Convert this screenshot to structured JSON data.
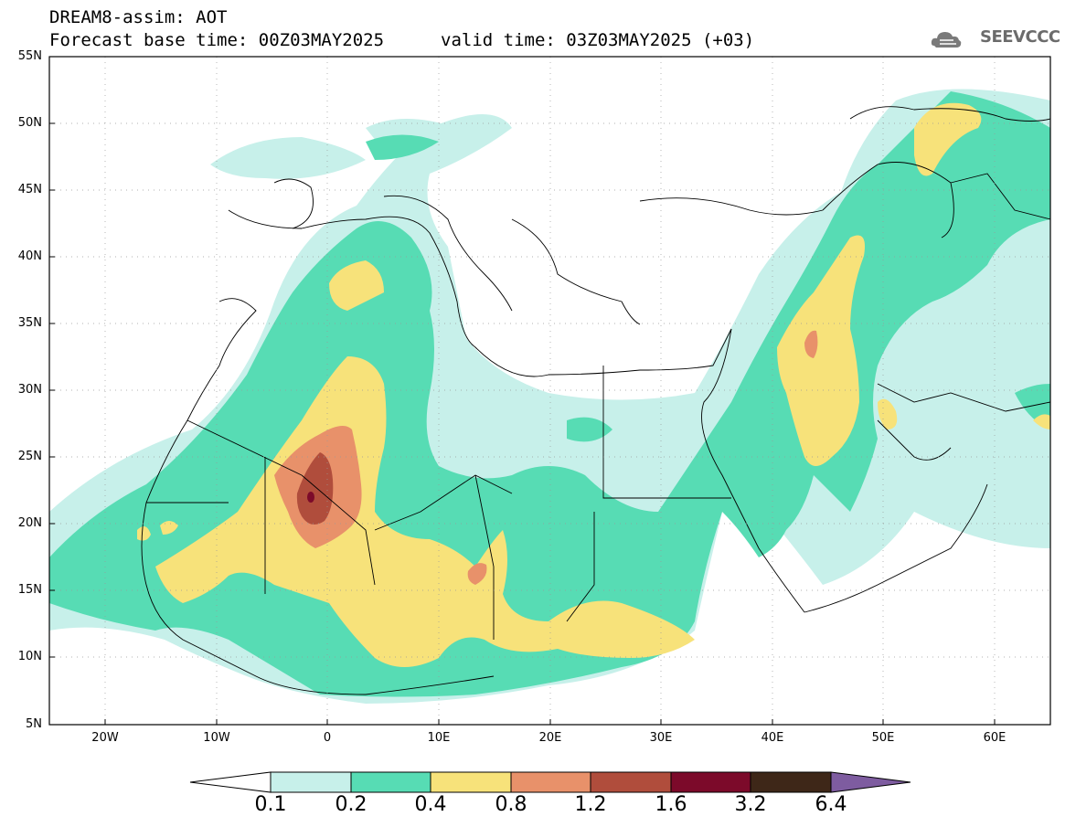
{
  "header": {
    "model_title": "DREAM8-assim: AOT",
    "base_time": "Forecast base time: 00Z03MAY2025",
    "valid_time": "valid time: 03Z03MAY2025 (+03)",
    "logo_text": "SEEVCCC"
  },
  "map": {
    "lat_labels": [
      "55N",
      "50N",
      "45N",
      "40N",
      "35N",
      "30N",
      "25N",
      "20N",
      "15N",
      "10N",
      "5N"
    ],
    "lon_labels": [
      "20W",
      "10W",
      "0",
      "10E",
      "20E",
      "30E",
      "40E",
      "50E",
      "60E"
    ],
    "extent": {
      "lon_min": -25,
      "lon_max": 65,
      "lat_min": 5,
      "lat_max": 55
    }
  },
  "colorbar": {
    "labels": [
      "0.1",
      "0.2",
      "0.4",
      "0.8",
      "1.2",
      "1.6",
      "3.2",
      "6.4"
    ],
    "colors": [
      "#c7f0ea",
      "#57dcb4",
      "#f7e27a",
      "#e8916a",
      "#b04d3c",
      "#7c0a2a",
      "#3e2718",
      "#7e5ca0"
    ]
  },
  "colors": {
    "level_0_1": "#c7f0ea",
    "level_0_2": "#57dcb4",
    "level_0_4": "#f7e27a",
    "level_0_8": "#e8916a",
    "level_1_2": "#b04d3c",
    "level_1_6": "#7c0a2a"
  }
}
